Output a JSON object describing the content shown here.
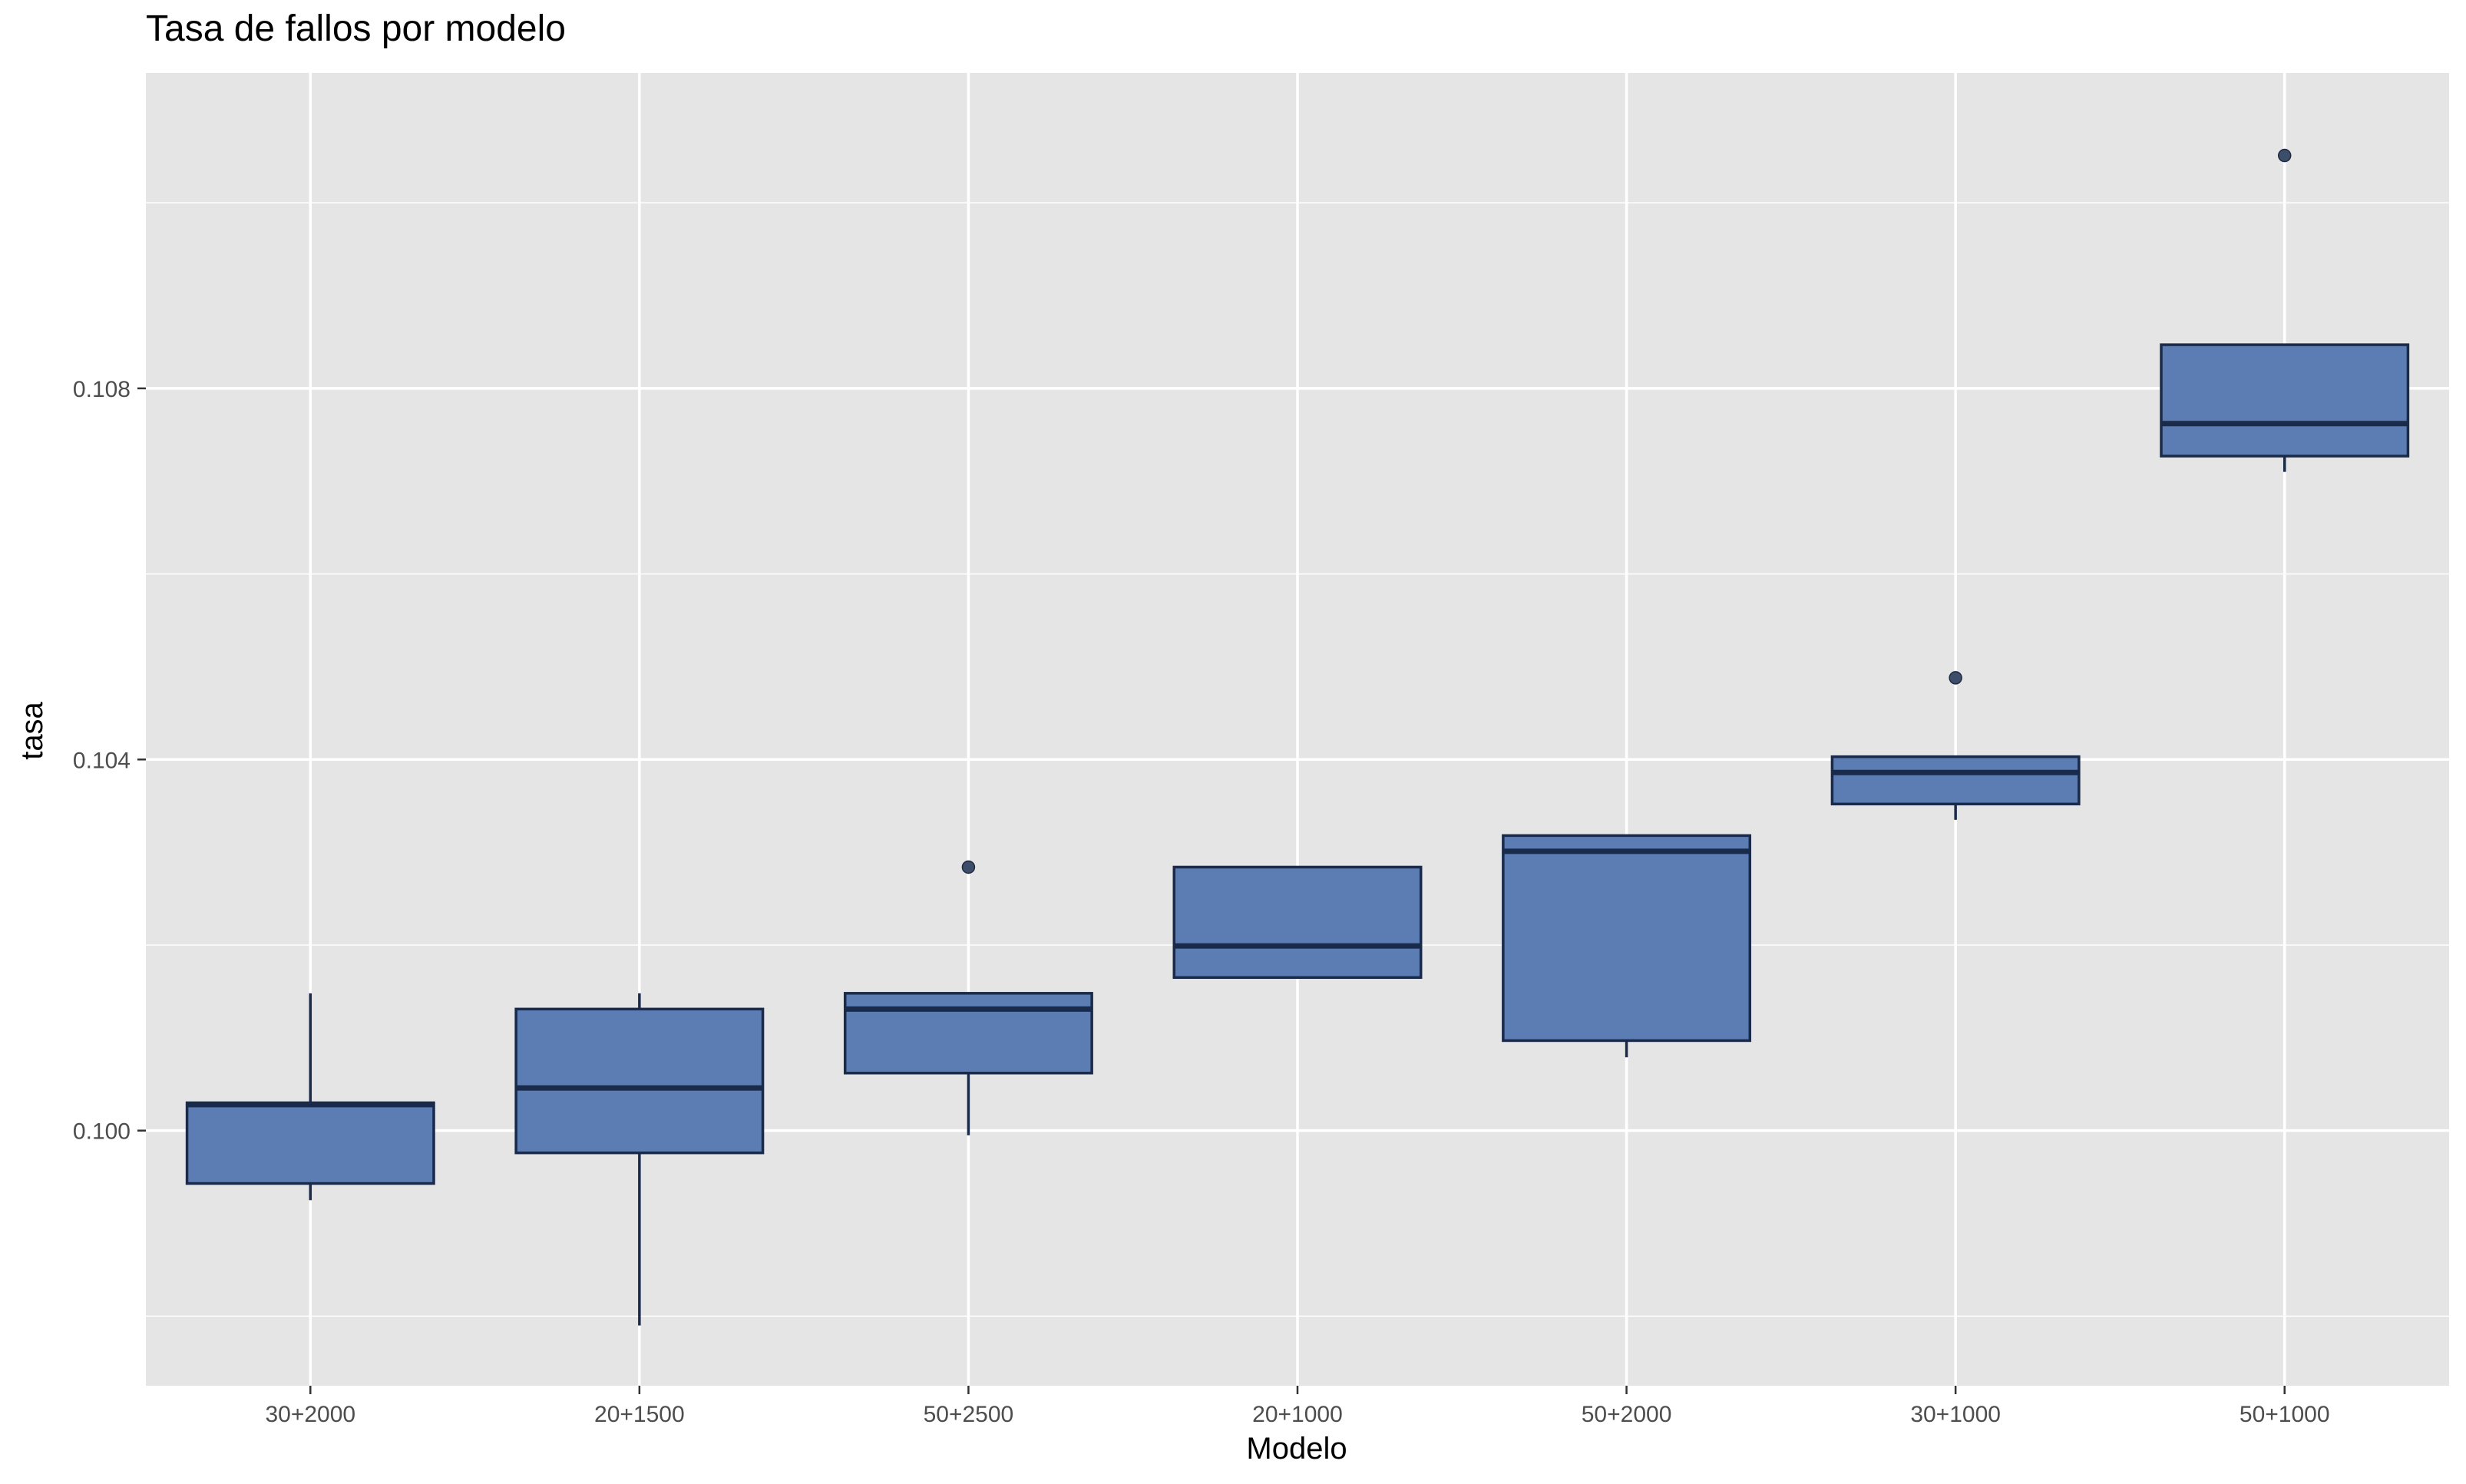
{
  "chart_data": {
    "type": "boxplot",
    "title": "Tasa de fallos por modelo",
    "xlabel": "Modelo",
    "ylabel": "tasa",
    "categories": [
      "30+2000",
      "20+1500",
      "50+2500",
      "20+1000",
      "50+2000",
      "30+1000",
      "50+1000"
    ],
    "ylim": [
      0.09725,
      0.1114
    ],
    "yticks": [
      0.1,
      0.104,
      0.108
    ],
    "ytick_labels": [
      "0.100",
      "0.104",
      "0.108"
    ],
    "grid": true,
    "colors": {
      "panel": "#e5e5e5",
      "grid": "#ffffff",
      "box_fill": "#5b7db3",
      "box_stroke": "#1a2a4a",
      "outlier": "#3d4e6b",
      "tick_text": "#4d4d4d"
    },
    "boxes": [
      {
        "category": "30+2000",
        "whisker_low": 0.09925,
        "q1": 0.09943,
        "median": 0.10028,
        "q3": 0.1003,
        "whisker_high": 0.10148,
        "outliers": []
      },
      {
        "category": "20+1500",
        "whisker_low": 0.0979,
        "q1": 0.09976,
        "median": 0.10046,
        "q3": 0.10131,
        "whisker_high": 0.10148,
        "outliers": []
      },
      {
        "category": "50+2500",
        "whisker_low": 0.09995,
        "q1": 0.10062,
        "median": 0.10131,
        "q3": 0.10148,
        "whisker_high": 0.10148,
        "outliers": [
          0.10284
        ]
      },
      {
        "category": "20+1000",
        "whisker_low": 0.10165,
        "q1": 0.10165,
        "median": 0.10199,
        "q3": 0.10284,
        "whisker_high": 0.10284,
        "outliers": []
      },
      {
        "category": "50+2000",
        "whisker_low": 0.10079,
        "q1": 0.10097,
        "median": 0.10301,
        "q3": 0.10318,
        "whisker_high": 0.10318,
        "outliers": []
      },
      {
        "category": "30+1000",
        "whisker_low": 0.10335,
        "q1": 0.10352,
        "median": 0.10386,
        "q3": 0.10403,
        "whisker_high": 0.10403,
        "outliers": [
          0.10488
        ]
      },
      {
        "category": "50+1000",
        "whisker_low": 0.1071,
        "q1": 0.10727,
        "median": 0.10762,
        "q3": 0.10847,
        "whisker_high": 0.10847,
        "outliers": [
          0.11051
        ]
      }
    ]
  }
}
